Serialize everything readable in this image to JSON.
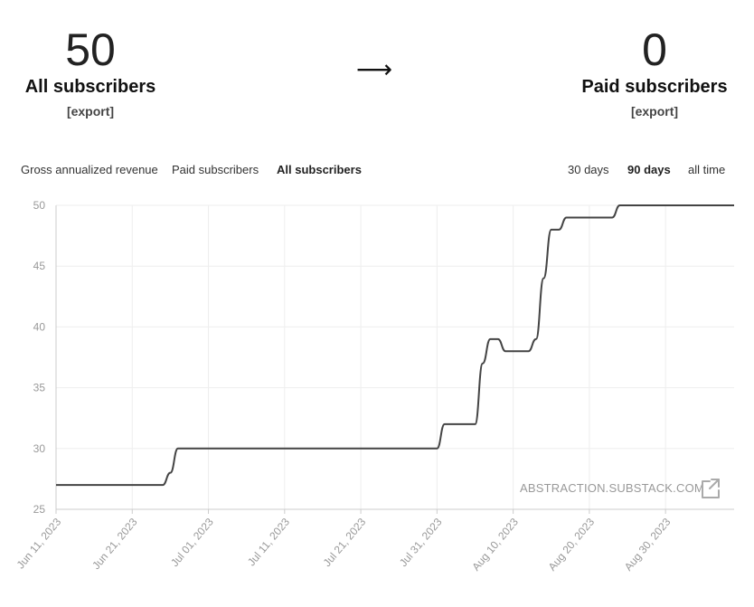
{
  "stats": {
    "all": {
      "value": "50",
      "label": "All subscribers",
      "export": "[export]"
    },
    "arrow": "⟶",
    "paid": {
      "value": "0",
      "label": "Paid subscribers",
      "export": "[export]"
    }
  },
  "metric_tabs": [
    {
      "label": "Gross annualized revenue",
      "active": false
    },
    {
      "label": "Paid subscribers",
      "active": false
    },
    {
      "label": "All subscribers",
      "active": true
    }
  ],
  "range_tabs": [
    {
      "label": "30 days",
      "active": false
    },
    {
      "label": "90 days",
      "active": true
    },
    {
      "label": "all time",
      "active": false
    }
  ],
  "watermark": "ABSTRACTION.SUBSTACK.COM",
  "chart_data": {
    "type": "line",
    "title": "",
    "xlabel": "",
    "ylabel": "",
    "grid": true,
    "ylim": [
      25,
      50
    ],
    "xlim": [
      "2023-06-11",
      "2023-09-08"
    ],
    "y_ticks": [
      25,
      30,
      35,
      40,
      45,
      50
    ],
    "x_ticks": [
      "2023-06-11",
      "2023-06-21",
      "2023-07-01",
      "2023-07-11",
      "2023-07-21",
      "2023-07-31",
      "2023-08-10",
      "2023-08-20",
      "2023-08-30"
    ],
    "x_tick_labels": [
      "Jun 11, 2023",
      "Jun 21, 2023",
      "Jul 01, 2023",
      "Jul 11, 2023",
      "Jul 21, 2023",
      "Jul 31, 2023",
      "Aug 10, 2023",
      "Aug 20, 2023",
      "Aug 30, 2023"
    ],
    "series": [
      {
        "color": "#444444",
        "x": [
          "2023-06-11",
          "2023-06-25",
          "2023-06-26",
          "2023-06-27",
          "2023-07-31",
          "2023-08-01",
          "2023-08-05",
          "2023-08-06",
          "2023-08-07",
          "2023-08-08",
          "2023-08-09",
          "2023-08-10",
          "2023-08-11",
          "2023-08-12",
          "2023-08-13",
          "2023-08-14",
          "2023-08-15",
          "2023-08-16",
          "2023-08-17",
          "2023-08-18",
          "2023-08-19",
          "2023-08-20",
          "2023-08-21",
          "2023-08-23",
          "2023-08-24",
          "2023-08-25",
          "2023-09-08"
        ],
        "y": [
          27,
          27,
          28,
          30,
          30,
          32,
          32,
          37,
          39,
          39,
          38,
          38,
          38,
          38,
          39,
          44,
          48,
          48,
          49,
          49,
          49,
          49,
          49,
          49,
          50,
          50,
          50
        ]
      }
    ]
  }
}
